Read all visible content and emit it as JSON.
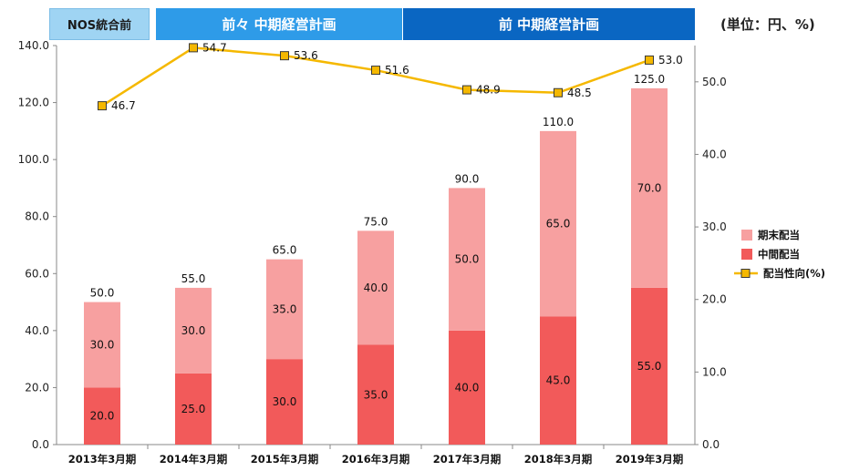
{
  "header": {
    "banner_nos": "NOS統合前",
    "banner_prev2": "前々 中期経営計画",
    "banner_prev": "前 中期経営計画",
    "unit": "(単位：円、%)"
  },
  "colors": {
    "interim": "#f25a5a",
    "year_end": "#f7a0a0",
    "ratio_line": "#f5b800",
    "ratio_marker": "#f5b800",
    "ratio_marker_edge": "#3a3a3a"
  },
  "chart_data": {
    "type": "bar",
    "stacked": true,
    "categories": [
      "2013年3月期",
      "2014年3月期",
      "2015年3月期",
      "2016年3月期",
      "2017年3月期",
      "2018年3月期",
      "2019年3月期"
    ],
    "series": [
      {
        "name": "中間配当",
        "axis": "left",
        "values": [
          20.0,
          25.0,
          30.0,
          35.0,
          40.0,
          45.0,
          55.0
        ]
      },
      {
        "name": "期末配当",
        "axis": "left",
        "values": [
          30.0,
          30.0,
          35.0,
          40.0,
          50.0,
          65.0,
          70.0
        ]
      },
      {
        "name": "配当性向(%)",
        "axis": "right",
        "type": "line",
        "values": [
          46.7,
          54.7,
          53.6,
          51.6,
          48.9,
          48.5,
          53.0
        ]
      }
    ],
    "totals": [
      50.0,
      55.0,
      65.0,
      75.0,
      90.0,
      110.0,
      125.0
    ],
    "left_axis": {
      "min": 0,
      "max": 140,
      "step": 20,
      "tick_labels": [
        "0.0",
        "20.0",
        "40.0",
        "60.0",
        "80.0",
        "100.0",
        "120.0",
        "140.0"
      ]
    },
    "right_axis": {
      "min": 0,
      "max": 55,
      "step": 10,
      "tick_labels": [
        "0.0",
        "10.0",
        "20.0",
        "30.0",
        "40.0",
        "50.0"
      ]
    },
    "legend": {
      "placement": "right",
      "entries": [
        "期末配当",
        "中間配当",
        "配当性向(%)"
      ]
    },
    "grid": false
  }
}
